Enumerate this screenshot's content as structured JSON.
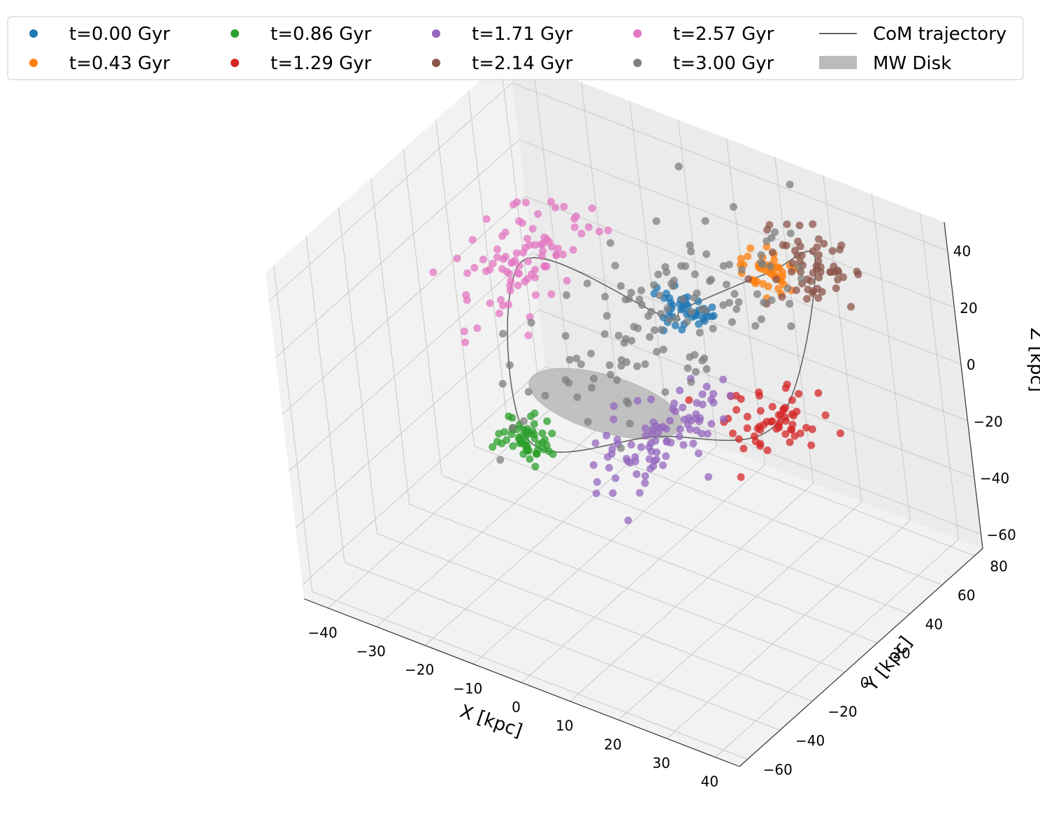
{
  "chart_data": {
    "type": "scatter3d",
    "xlabel": "X [kpc]",
    "ylabel": "Y [kpc]",
    "zlabel": "Z [kpc]",
    "xlim": [
      -45,
      45
    ],
    "ylim": [
      -65,
      85
    ],
    "zlim": [
      -65,
      50
    ],
    "xticks": [
      -40,
      -30,
      -20,
      -10,
      0,
      10,
      20,
      30,
      40
    ],
    "xtick_labels": [
      "−40",
      "−30",
      "−20",
      "−10",
      "0",
      "10",
      "20",
      "30",
      "40"
    ],
    "yticks": [
      -60,
      -40,
      -20,
      0,
      20,
      40,
      60,
      80
    ],
    "ytick_labels": [
      "−60",
      "−40",
      "−20",
      "0",
      "20",
      "40",
      "60",
      "80"
    ],
    "zticks": [
      -60,
      -40,
      -20,
      0,
      20,
      40
    ],
    "ztick_labels": [
      "−60",
      "−40",
      "−20",
      "0",
      "20",
      "40"
    ],
    "grid": true,
    "legend_position": "top",
    "series": [
      {
        "name": "t=0.00 Gyr",
        "color": "#1f77b4",
        "center": [
          2,
          45,
          12
        ],
        "spread": [
          3,
          4,
          2.5
        ],
        "count": 45
      },
      {
        "name": "t=0.43 Gyr",
        "color": "#ff7f0e",
        "center": [
          15,
          60,
          25
        ],
        "spread": [
          3,
          4,
          2.5
        ],
        "count": 45
      },
      {
        "name": "t=0.86 Gyr",
        "color": "#2ca02c",
        "center": [
          -8,
          -25,
          -5
        ],
        "spread": [
          3,
          4,
          3
        ],
        "count": 55
      },
      {
        "name": "t=1.29 Gyr",
        "color": "#d62728",
        "center": [
          28,
          22,
          0
        ],
        "spread": [
          4,
          8,
          4
        ],
        "count": 60
      },
      {
        "name": "t=1.71 Gyr",
        "color": "#9467bd",
        "center": [
          10,
          0,
          -5
        ],
        "spread": [
          4,
          18,
          4
        ],
        "count": 90
      },
      {
        "name": "t=2.14 Gyr",
        "color": "#8c564b",
        "center": [
          20,
          75,
          25
        ],
        "spread": [
          4,
          6,
          5
        ],
        "count": 60
      },
      {
        "name": "t=2.57 Gyr",
        "color": "#e377c2",
        "center": [
          -30,
          40,
          10
        ],
        "spread": [
          5,
          20,
          5
        ],
        "count": 90
      },
      {
        "name": "t=3.00 Gyr",
        "color": "#7f7f7f",
        "center": [
          0,
          40,
          10
        ],
        "spread": [
          8,
          35,
          8
        ],
        "count": 130
      }
    ],
    "com_trajectory": {
      "name": "CoM trajectory",
      "color": "#666666"
    },
    "mw_disk": {
      "name": "MW Disk",
      "color": "#bbbbbb",
      "radius": 15
    }
  }
}
